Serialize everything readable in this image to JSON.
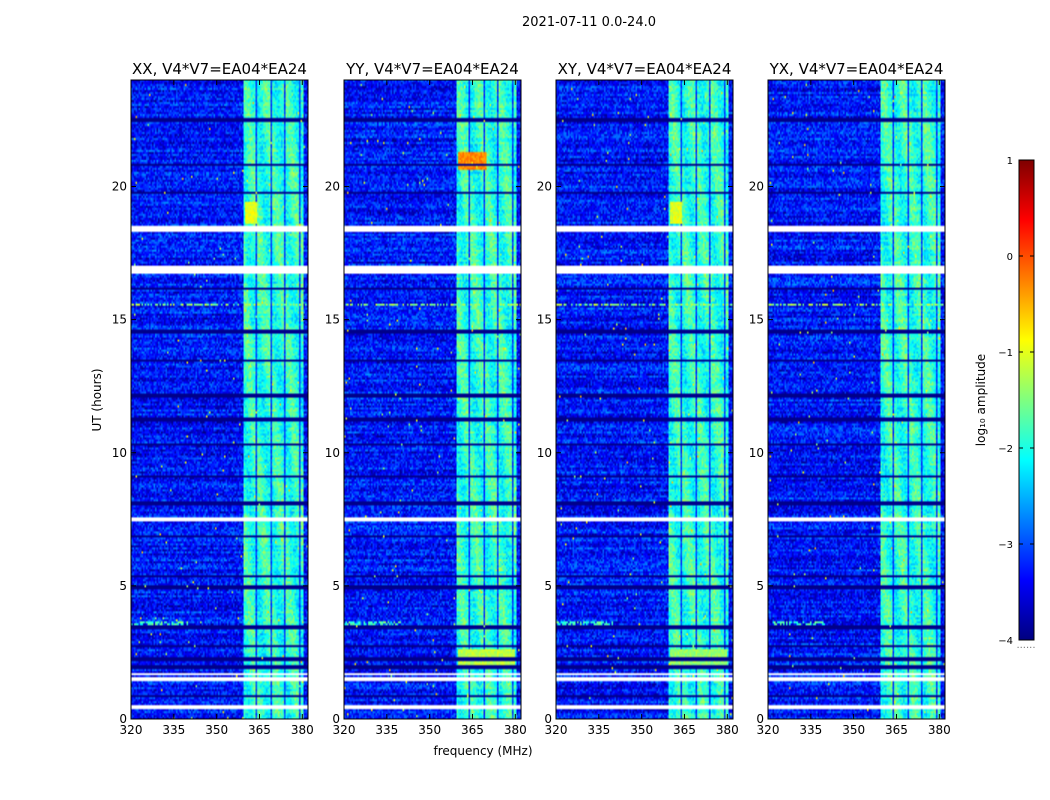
{
  "figure": {
    "suptitle": "2021-07-11 0.0-24.0",
    "xlabel": "frequency (MHz)",
    "ylabel": "UT (hours)",
    "colorbar_label": "log₁₀ amplitude",
    "colorbar_ticks": [
      1,
      0,
      -1,
      -2,
      -3,
      -4
    ],
    "colorbar_tick_labels": [
      "1",
      "0",
      "−1",
      "−2",
      "−3",
      "−4"
    ],
    "colorbar_extra_label": "......"
  },
  "chart_data": {
    "type": "heatmap",
    "x_range": [
      320,
      382
    ],
    "y_range": [
      0,
      24
    ],
    "x_ticks": [
      320,
      335,
      350,
      365,
      380
    ],
    "y_ticks": [
      0,
      5,
      10,
      15,
      20
    ],
    "color_range": [
      -4,
      1
    ],
    "colormap": "jet",
    "panels": [
      {
        "title": "XX, V4*V7=EA04*EA24",
        "pol": "XX"
      },
      {
        "title": "YY, V4*V7=EA04*EA24",
        "pol": "YY"
      },
      {
        "title": "XY, V4*V7=EA04*EA24",
        "pol": "XY"
      },
      {
        "title": "YX, V4*V7=EA04*EA24",
        "pol": "YX"
      }
    ],
    "background_level": -3.3,
    "bright_band_mhz": [
      359.5,
      380.5
    ],
    "bright_band_level": -1.9,
    "channel_gaps_mhz": [
      364,
      369,
      374,
      379
    ],
    "data_gaps_hours": [
      [
        0.35,
        0.55
      ],
      [
        1.45,
        1.55
      ],
      [
        1.65,
        1.75
      ],
      [
        7.45,
        7.6
      ],
      [
        16.75,
        17.0
      ],
      [
        18.3,
        18.55
      ]
    ],
    "dark_rows_hours": [
      0.85,
      1.95,
      2.25,
      2.75,
      3.45,
      4.95,
      5.35,
      6.85,
      8.1,
      9.1,
      10.3,
      11.25,
      12.15,
      13.45,
      14.55,
      16.15,
      19.75,
      20.8,
      22.5
    ],
    "hot_spots": [
      {
        "panel": "YY",
        "x_mhz": [
          360,
          370
        ],
        "y_hours": [
          20.6,
          21.3
        ],
        "level": -0.3
      },
      {
        "panel": "XX",
        "x_mhz": [
          360,
          364
        ],
        "y_hours": [
          18.6,
          19.4
        ],
        "level": -1.0
      },
      {
        "panel": "XY",
        "x_mhz": [
          360,
          364
        ],
        "y_hours": [
          18.6,
          19.4
        ],
        "level": -1.0
      },
      {
        "panel": "YY",
        "x_mhz": [
          360,
          380
        ],
        "y_hours": [
          1.9,
          2.6
        ],
        "level": -1.2
      },
      {
        "panel": "XY",
        "x_mhz": [
          360,
          380
        ],
        "y_hours": [
          1.9,
          2.6
        ],
        "level": -1.4
      }
    ],
    "rfi_lines": [
      {
        "y_hours": 15.55,
        "x_mhz": [
          320,
          382
        ],
        "level": -1.4
      },
      {
        "y_hours": 3.6,
        "x_mhz": [
          320,
          340
        ],
        "level": -1.8
      }
    ]
  }
}
